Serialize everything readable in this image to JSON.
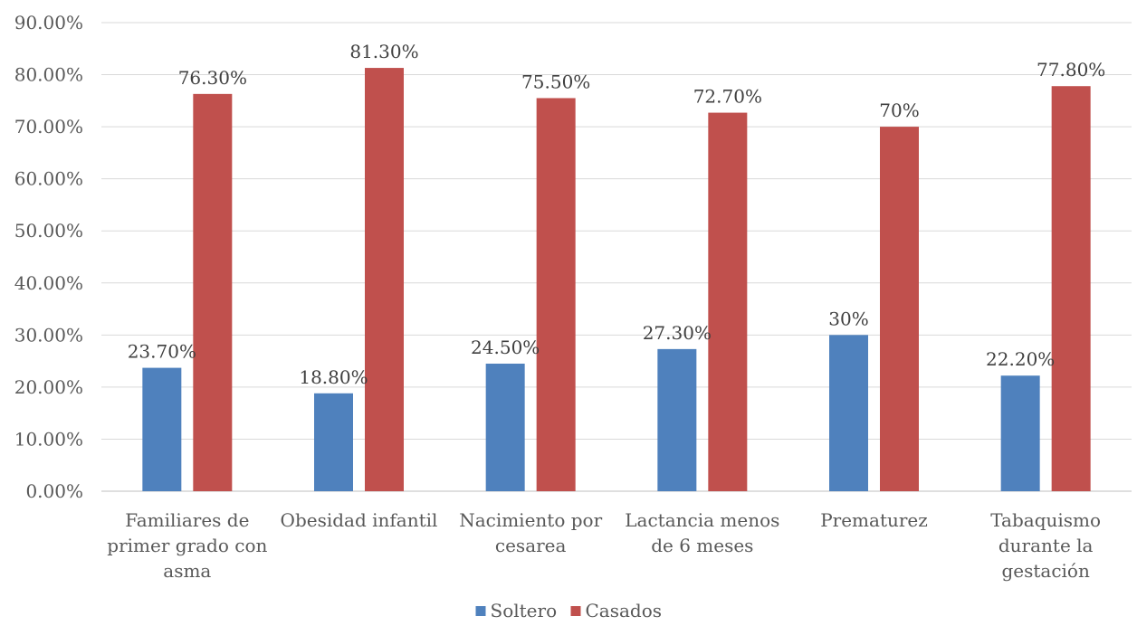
{
  "chart_data": {
    "type": "bar",
    "categories": [
      [
        "Familiares de",
        "primer grado con",
        "asma"
      ],
      [
        "Obesidad infantil"
      ],
      [
        "Nacimiento por",
        "cesarea"
      ],
      [
        "Lactancia menos",
        "de 6 meses"
      ],
      [
        "Prematurez"
      ],
      [
        "Tabaquismo",
        "durante la",
        "gestación"
      ]
    ],
    "series": [
      {
        "name": "Soltero",
        "color": "#4f81bd",
        "values": [
          23.7,
          18.8,
          24.5,
          27.3,
          30,
          22.2
        ],
        "labels": [
          "23.70%",
          "18.80%",
          "24.50%",
          "27.30%",
          "30%",
          "22.20%"
        ]
      },
      {
        "name": "Casados",
        "color": "#c0504d",
        "values": [
          76.3,
          81.3,
          75.5,
          72.7,
          70,
          77.8
        ],
        "labels": [
          "76.30%",
          "81.30%",
          "75.50%",
          "72.70%",
          "70%",
          "77.80%"
        ]
      }
    ],
    "ylim": [
      0,
      90
    ],
    "yticks": [
      "0.00%",
      "10.00%",
      "20.00%",
      "30.00%",
      "40.00%",
      "50.00%",
      "60.00%",
      "70.00%",
      "80.00%",
      "90.00%"
    ],
    "grid": true,
    "legend": "bottom",
    "title": "",
    "xlabel": "",
    "ylabel": ""
  }
}
